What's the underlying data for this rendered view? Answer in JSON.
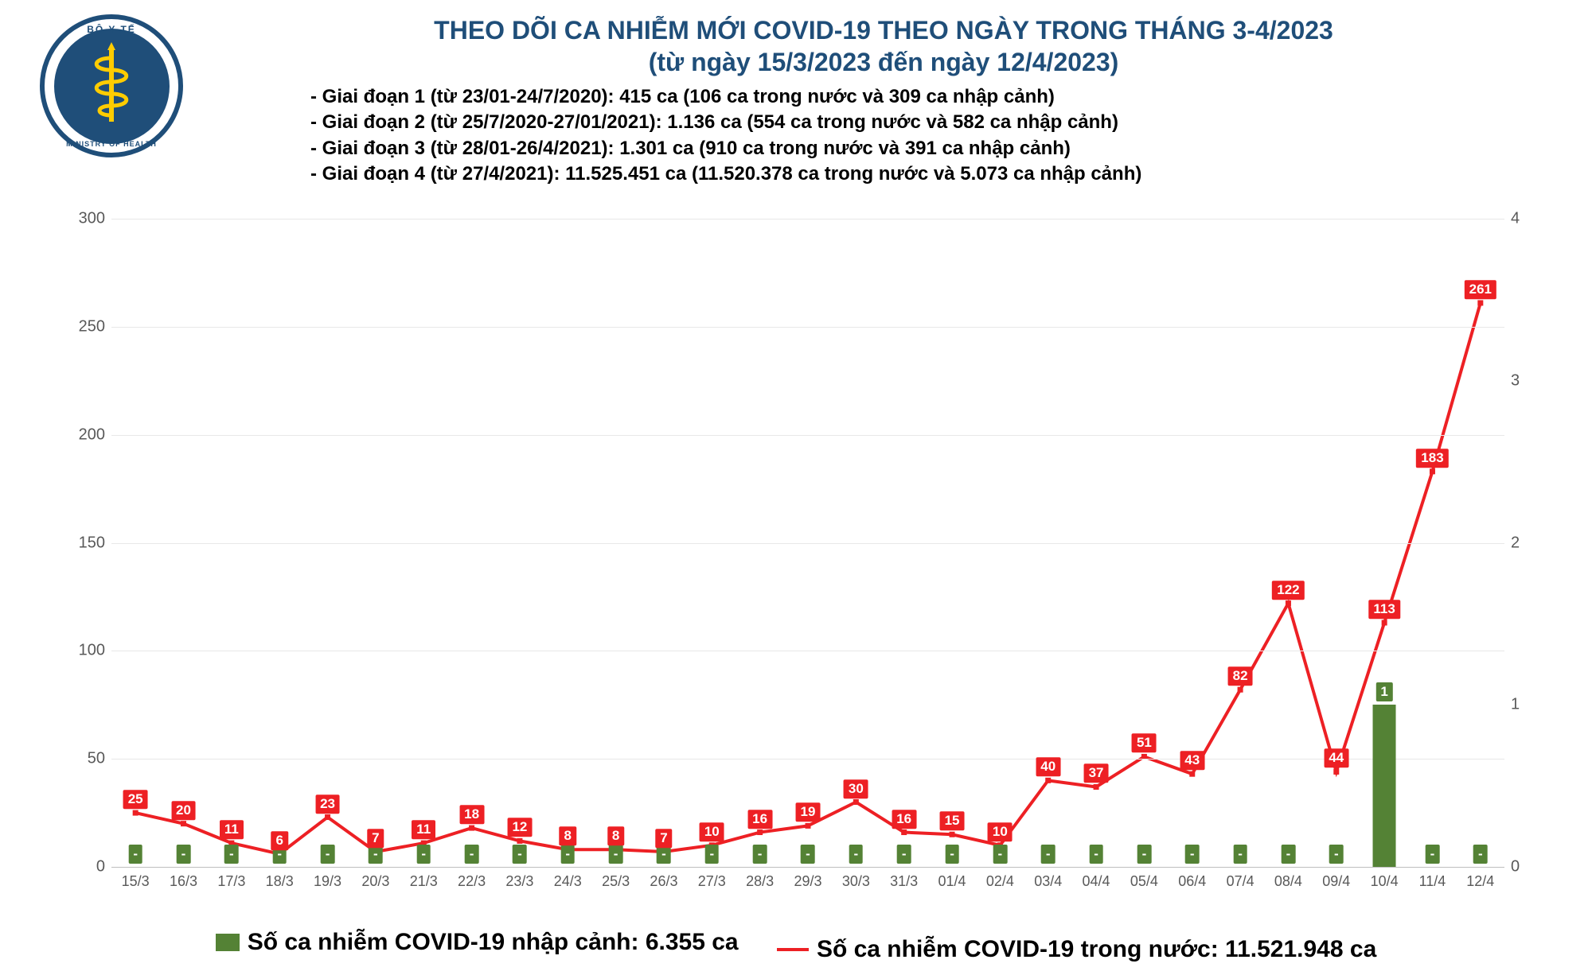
{
  "title": {
    "line1": "THEO DÕI CA NHIỄM MỚI COVID-19 THEO NGÀY TRONG THÁNG 3-4/2023",
    "line2": "(từ ngày 15/3/2023 đến ngày 12/4/2023)",
    "color": "#1f4e79",
    "fontsize": 32
  },
  "logo": {
    "top_text": "BỘ Y TẾ",
    "bottom_text": "MINISTRY OF HEALTH",
    "ring_color": "#1f4e79",
    "staff_color": "#ffcc00",
    "star_color": "#ffcc00"
  },
  "periods": [
    "- Giai đoạn 1 (từ 23/01-24/7/2020): 415 ca (106 ca trong nước và 309 ca nhập cảnh)",
    "- Giai đoạn 2 (từ 25/7/2020-27/01/2021): 1.136 ca (554 ca trong nước và 582 ca nhập cảnh)",
    "- Giai đoạn 3 (từ 28/01-26/4/2021): 1.301 ca (910 ca trong nước và 391 ca nhập cảnh)",
    "- Giai đoạn 4 (từ 27/4/2021): 11.525.451 ca (11.520.378 ca trong nước và 5.073 ca nhập cảnh)"
  ],
  "chart": {
    "type": "combo-bar-line",
    "background_color": "#ffffff",
    "grid_color": "#e8e8e8",
    "axis_text_color": "#595959",
    "tick_fontsize": 20,
    "category_fontsize": 18,
    "label_fontsize": 17,
    "categories": [
      "15/3",
      "16/3",
      "17/3",
      "18/3",
      "19/3",
      "20/3",
      "21/3",
      "22/3",
      "23/3",
      "24/3",
      "25/3",
      "26/3",
      "27/3",
      "28/3",
      "29/3",
      "30/3",
      "31/3",
      "01/4",
      "02/4",
      "03/4",
      "04/4",
      "05/4",
      "06/4",
      "07/4",
      "08/4",
      "09/4",
      "10/4",
      "11/4",
      "12/4"
    ],
    "y_left": {
      "min": 0,
      "max": 300,
      "step": 50
    },
    "y_right": {
      "min": 0,
      "max": 4,
      "step": 1
    },
    "bar_series": {
      "color": "#548235",
      "label_bg": "#548235",
      "label_color": "#ffffff",
      "bar_width_ratio": 0.48,
      "values": [
        null,
        null,
        null,
        null,
        null,
        null,
        null,
        null,
        null,
        null,
        null,
        null,
        null,
        null,
        null,
        null,
        null,
        null,
        null,
        null,
        null,
        null,
        null,
        null,
        null,
        null,
        1,
        null,
        null
      ],
      "labels": [
        "-",
        "-",
        "-",
        "-",
        "-",
        "-",
        "-",
        "-",
        "-",
        "-",
        "-",
        "-",
        "-",
        "-",
        "-",
        "-",
        "-",
        "-",
        "-",
        "-",
        "-",
        "-",
        "-",
        "-",
        "-",
        "-",
        "1",
        "-",
        "-"
      ]
    },
    "line_series": {
      "color": "#ed2024",
      "line_width": 4,
      "marker_size": 7,
      "label_bg": "#ed2024",
      "label_color": "#ffffff",
      "values": [
        25,
        20,
        11,
        6,
        23,
        7,
        11,
        18,
        12,
        8,
        8,
        7,
        10,
        16,
        19,
        30,
        16,
        15,
        10,
        40,
        37,
        51,
        43,
        82,
        122,
        44,
        113,
        183,
        261
      ]
    }
  },
  "legend": {
    "bar": {
      "text": "Số ca nhiễm COVID-19 nhập cảnh: 6.355 ca",
      "color": "#548235"
    },
    "line": {
      "text": "Số ca nhiễm COVID-19 trong nước: 11.521.948 ca",
      "color": "#ed2024"
    }
  }
}
